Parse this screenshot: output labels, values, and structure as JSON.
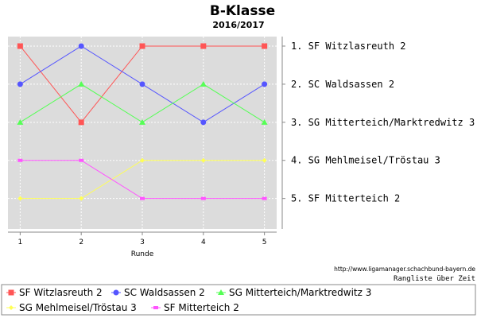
{
  "page": {
    "source_url": "http://www.ligamanager.schachbund-bayern.de",
    "caption": "Rangliste über Zeit"
  },
  "chart_data": {
    "type": "line",
    "title": "B-Klasse",
    "subtitle": "2016/2017",
    "xlabel": "Runde",
    "ylabel": "",
    "x": [
      1,
      2,
      3,
      4,
      5
    ],
    "xlim": [
      0.8,
      5.2
    ],
    "ylim": [
      5.8,
      0.75
    ],
    "grid": true,
    "background": "#dcdcdc",
    "rank_labels": [
      {
        "rank": 1,
        "label": "1. SF Witzlasreuth 2"
      },
      {
        "rank": 2,
        "label": "2. SC Waldsassen 2"
      },
      {
        "rank": 3,
        "label": "3. SG Mitterteich/Marktredwitz 3"
      },
      {
        "rank": 4,
        "label": "4. SG Mehlmeisel/Tröstau 3"
      },
      {
        "rank": 5,
        "label": "5. SF Mitterteich 2"
      }
    ],
    "legend_position": "bottom",
    "series": [
      {
        "name": "SF Witzlasreuth 2",
        "values": [
          1,
          3,
          1,
          1,
          1
        ],
        "color": "#ff5555",
        "marker": "square"
      },
      {
        "name": "SC Waldsassen 2",
        "values": [
          2,
          1,
          2,
          3,
          2
        ],
        "color": "#5555ff",
        "marker": "circle"
      },
      {
        "name": "SG Mitterteich/Marktredwitz 3",
        "values": [
          3,
          2,
          3,
          2,
          3
        ],
        "color": "#55ff55",
        "marker": "triangle"
      },
      {
        "name": "SG Mehlmeisel/Tröstau 3",
        "values": [
          5,
          5,
          4,
          4,
          4
        ],
        "color": "#ffff55",
        "marker": "diamond"
      },
      {
        "name": "SF Mitterteich 2",
        "values": [
          4,
          4,
          5,
          5,
          5
        ],
        "color": "#ff55ff",
        "marker": "square-small"
      }
    ]
  }
}
